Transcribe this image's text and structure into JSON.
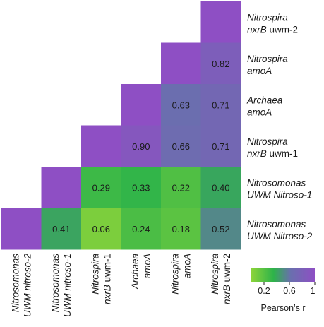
{
  "chart_data": {
    "type": "heatmap",
    "shape": "lower-triangle",
    "variables": [
      {
        "name": "Nitrosomonas",
        "qualifier": "UWM nitroso-2"
      },
      {
        "name": "Nitrosomonas",
        "qualifier": "UWM nitroso-1"
      },
      {
        "name": "Nitrospira",
        "qualifier": "nxrB uwm-1"
      },
      {
        "name": "Archaea",
        "qualifier": "amoA"
      },
      {
        "name": "Nitrospira",
        "qualifier": "amoA"
      },
      {
        "name": "Nitrospira",
        "qualifier": "nxrB uwm-2"
      }
    ],
    "row_labels": [
      {
        "name": "Nitrospira",
        "qualifier": "nxrB uwm-2"
      },
      {
        "name": "Nitrospira",
        "qualifier": "amoA"
      },
      {
        "name": "Archaea",
        "qualifier": "amoA"
      },
      {
        "name": "Nitrospira",
        "qualifier": "nxrB uwm-1"
      },
      {
        "name": "Nitrosomonas",
        "qualifier": "UWM Nitroso-1"
      },
      {
        "name": "Nitrosomonas",
        "qualifier": "UWM Nitroso-2"
      }
    ],
    "matrix": [
      [
        1,
        null,
        null,
        null,
        null,
        null
      ],
      [
        0.41,
        1,
        null,
        null,
        null,
        null
      ],
      [
        0.06,
        0.29,
        1,
        null,
        null,
        null
      ],
      [
        0.24,
        0.33,
        0.9,
        1,
        null,
        null
      ],
      [
        0.18,
        0.22,
        0.66,
        0.63,
        1,
        null
      ],
      [
        0.52,
        0.4,
        0.71,
        0.71,
        0.82,
        1
      ]
    ],
    "color_scale": {
      "title": "Pearson’s r",
      "ticks": [
        "0.2",
        "0.6",
        "1"
      ],
      "range": [
        0,
        1
      ],
      "stops": [
        {
          "value": 0,
          "color": "#8cd43a"
        },
        {
          "value": 0.35,
          "color": "#2db34a"
        },
        {
          "value": 0.62,
          "color": "#6a6fae"
        },
        {
          "value": 1,
          "color": "#8e4fc4"
        }
      ]
    }
  }
}
